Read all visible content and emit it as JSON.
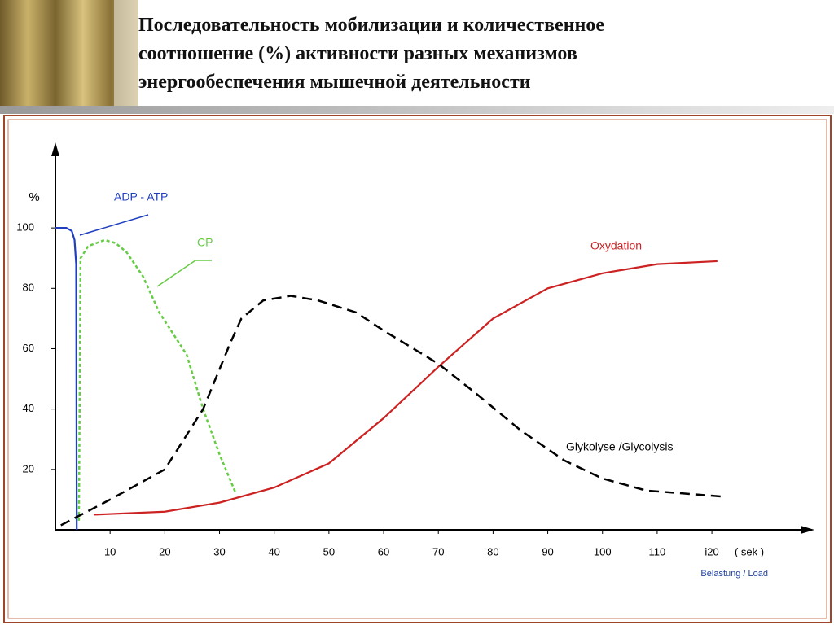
{
  "title": "Последовательность  мобилизации и количественное соотношение (%) активности разных механизмов энергообеспечения мышечной деятельности",
  "chart_data": {
    "type": "line",
    "ylabel": "%",
    "xlabel": "Belastung / Load",
    "xunit": "( sek )",
    "xlim": [
      0,
      138
    ],
    "ylim": [
      0,
      127
    ],
    "xticks": [
      10,
      20,
      30,
      40,
      50,
      60,
      70,
      80,
      90,
      100,
      110,
      {
        "value": 120,
        "label": "i20"
      }
    ],
    "yticks": [
      20,
      40,
      60,
      80,
      100
    ],
    "series": [
      {
        "name": "ADP - ATP",
        "color": "#1f3fbf",
        "dash": false,
        "x": [
          0,
          2,
          3,
          3.5,
          3.8,
          3.9
        ],
        "values": [
          100,
          100,
          99,
          96,
          88,
          0
        ]
      },
      {
        "name": "CP",
        "color": "#66cc44",
        "dash": true,
        "x": [
          4.3,
          4.6,
          6,
          9,
          11,
          13,
          16,
          19,
          24,
          27,
          30,
          33
        ],
        "values": [
          3,
          90,
          94,
          96,
          95,
          92,
          84,
          72,
          58,
          40,
          25,
          12
        ]
      },
      {
        "name": "Oxydation",
        "color": "#cc2222",
        "dash": false,
        "x": [
          7,
          20,
          30,
          40,
          50,
          60,
          70,
          80,
          90,
          100,
          110,
          121
        ],
        "values": [
          5,
          6,
          9,
          14,
          22,
          37,
          54,
          70,
          80,
          85,
          88,
          89
        ]
      },
      {
        "name": "Glykolyse /Glycolysis",
        "color": "#000000",
        "dash": true,
        "x": [
          1,
          10,
          20,
          27,
          32,
          34,
          38,
          43,
          48,
          55,
          60,
          70,
          77,
          85,
          93,
          100,
          108,
          122
        ],
        "values": [
          1.5,
          10,
          20,
          40,
          62,
          70,
          76,
          77.5,
          76,
          72,
          66,
          55,
          45,
          33,
          23,
          17,
          13,
          11
        ]
      }
    ]
  }
}
